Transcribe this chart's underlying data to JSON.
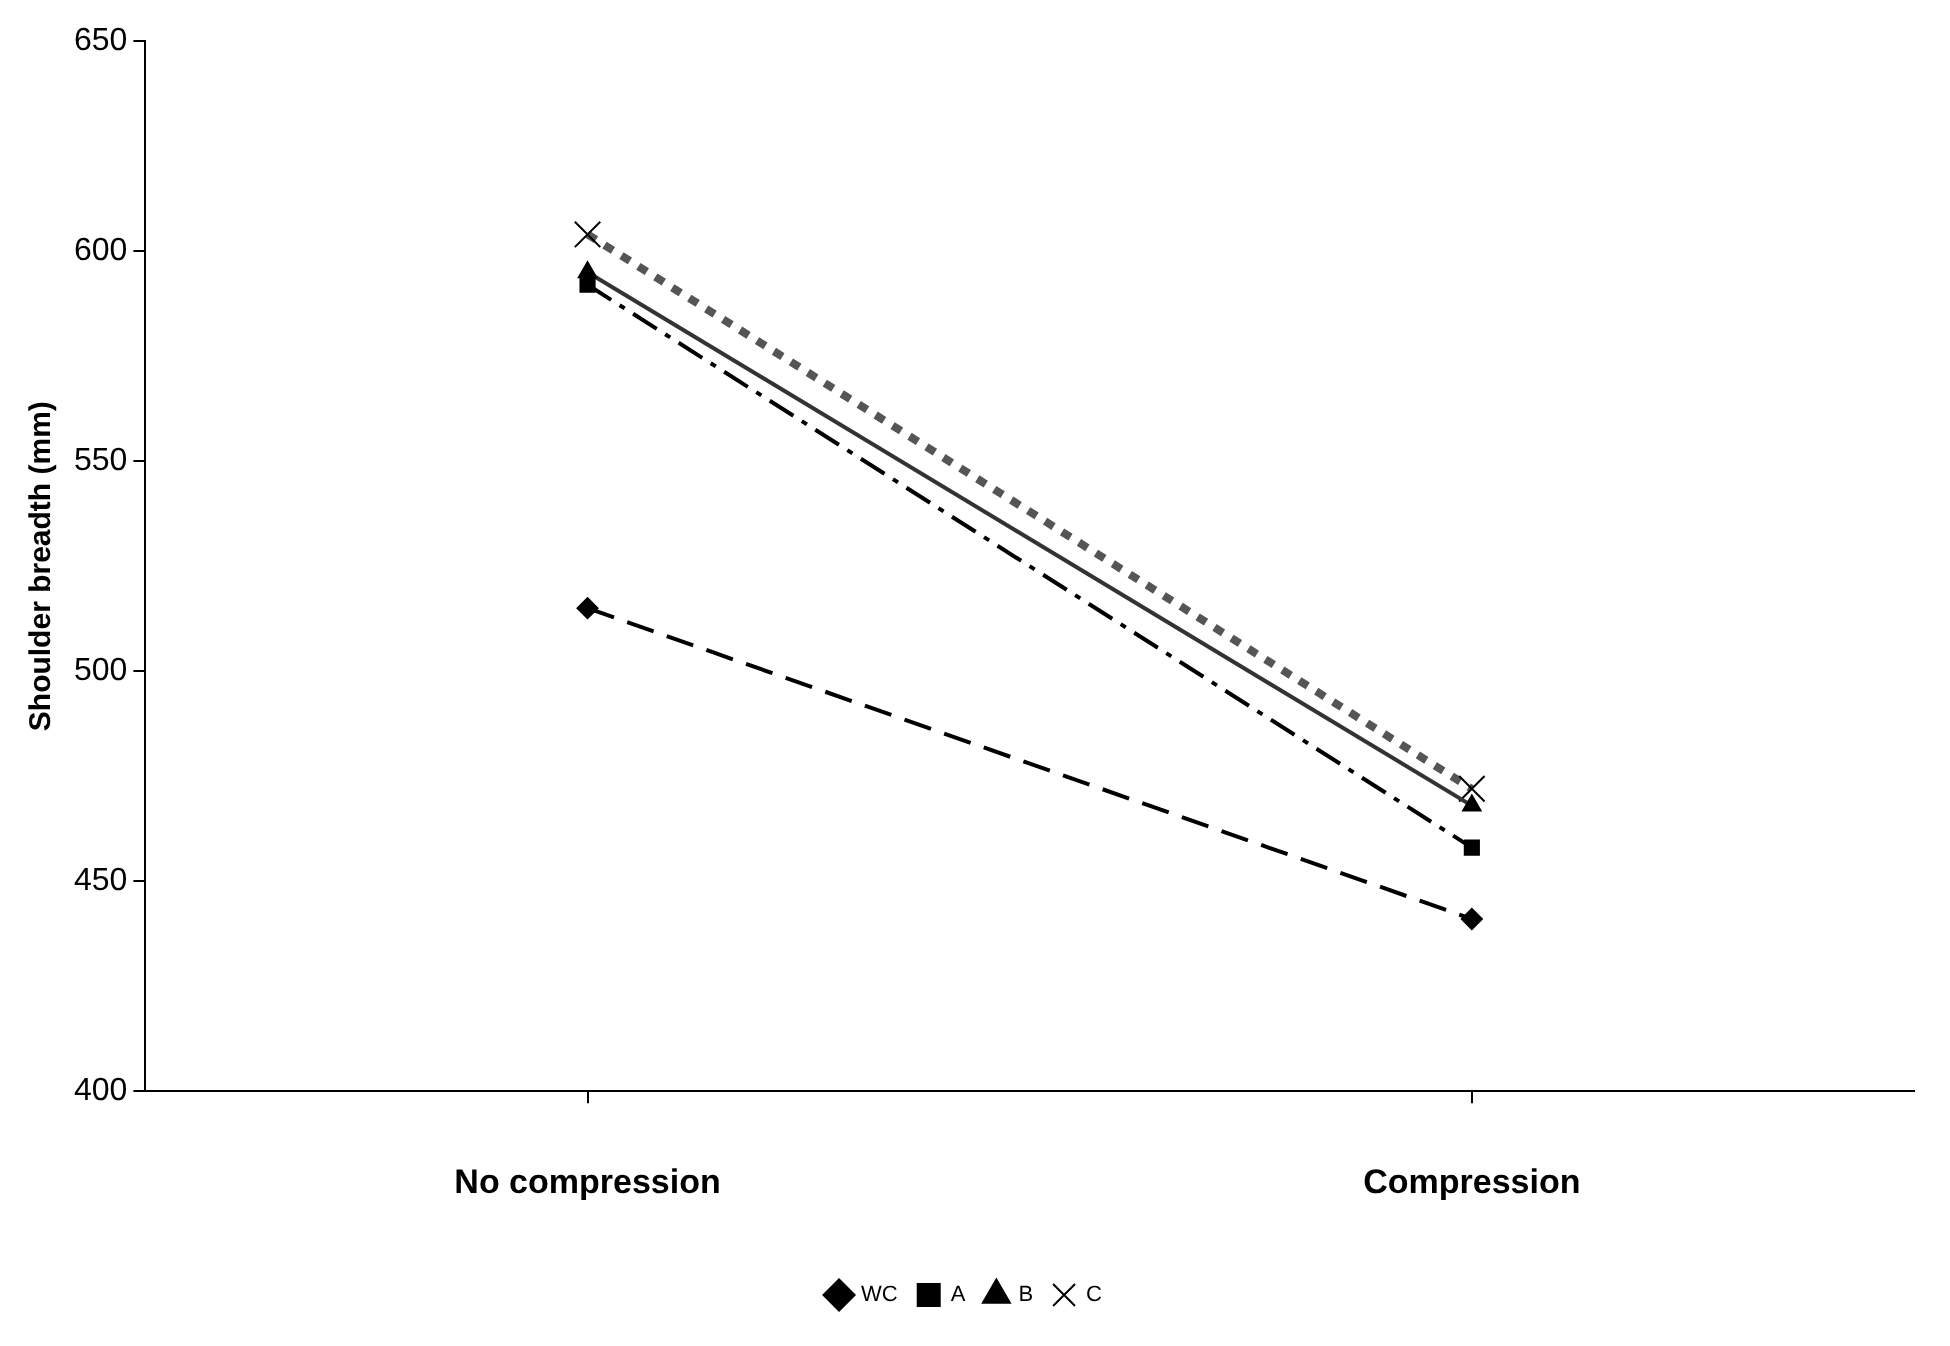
{
  "chart_data": {
    "type": "line",
    "ylabel": "Shoulder breadth (mm)",
    "categories": [
      "No compression",
      "Compression"
    ],
    "series": [
      {
        "name": "WC",
        "color": "#000000",
        "values": [
          515,
          441
        ],
        "marker": "diamond",
        "line_style": "dashed"
      },
      {
        "name": "A",
        "color": "#000000",
        "values": [
          592,
          458
        ],
        "marker": "square",
        "line_style": "dashdot"
      },
      {
        "name": "B",
        "color": "#333333",
        "values": [
          595,
          468
        ],
        "marker": "triangle",
        "line_style": "solid"
      },
      {
        "name": "C",
        "color": "#555555",
        "values": [
          604,
          472
        ],
        "marker": "cross",
        "line_style": "dotted"
      }
    ],
    "ylim": [
      400,
      650
    ],
    "yticks": [
      400,
      450,
      500,
      550,
      600,
      650
    ],
    "grid": false,
    "legend": "bottom"
  }
}
